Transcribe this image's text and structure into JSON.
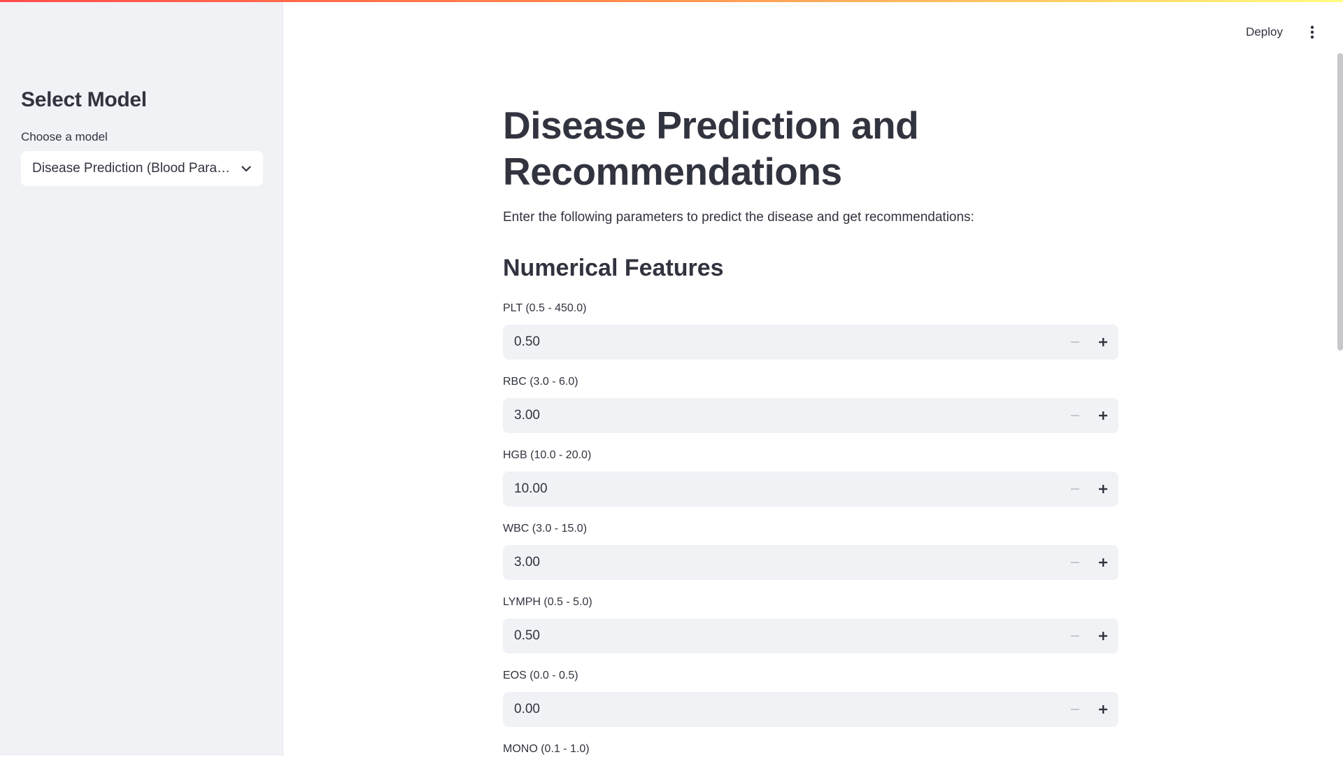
{
  "sidebar": {
    "title": "Select Model",
    "select_label": "Choose a model",
    "selected_value": "Disease Prediction (Blood Para…"
  },
  "header": {
    "deploy_label": "Deploy",
    "menu_icon": "kebab-menu-icon"
  },
  "main": {
    "title": "Disease Prediction and Recommendations",
    "intro": "Enter the following parameters to predict the disease and get recommendations:",
    "section_title": "Numerical Features",
    "fields": [
      {
        "label": "PLT (0.5 - 450.0)",
        "value": "0.50"
      },
      {
        "label": "RBC (3.0 - 6.0)",
        "value": "3.00"
      },
      {
        "label": "HGB (10.0 - 20.0)",
        "value": "10.00"
      },
      {
        "label": "WBC (3.0 - 15.0)",
        "value": "3.00"
      },
      {
        "label": "LYMPH (0.5 - 5.0)",
        "value": "0.50"
      },
      {
        "label": "EOS (0.0 - 0.5)",
        "value": "0.00"
      },
      {
        "label": "MONO (0.1 - 1.0)",
        "value": ""
      }
    ]
  },
  "colors": {
    "sidebar_bg": "#f0f2f6",
    "text": "#31333f",
    "input_bg": "#f0f2f6",
    "accent_gradient_start": "#ff4b4b",
    "accent_gradient_end": "#fffd80"
  }
}
